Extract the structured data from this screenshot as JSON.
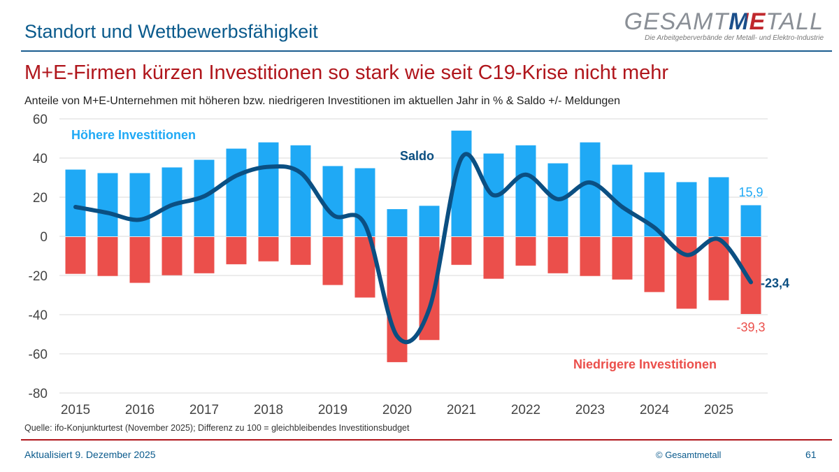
{
  "header": {
    "section_title": "Standort und Wettbewerbsfähigkeit",
    "logo": {
      "text_left": "GESAMT",
      "text_me": "ME",
      "text_right": "TALL",
      "tagline": "Die Arbeitgeberverbände der Metall- und Elektro-Industrie"
    }
  },
  "headline": "M+E-Firmen kürzen Investitionen so stark wie seit C19-Krise nicht mehr",
  "subtitle": "Anteile von M+E-Unternehmen mit höheren bzw. niedrigeren Investitionen im aktuellen Jahr in % & Saldo +/- Meldungen",
  "chart_data": {
    "type": "bar",
    "ylim": [
      -80,
      60
    ],
    "yticks": [
      "60",
      "40",
      "20",
      "0",
      "-20",
      "-40",
      "-60",
      "-80"
    ],
    "ytick_values": [
      60,
      40,
      20,
      0,
      -20,
      -40,
      -60,
      -80
    ],
    "xtick_labels": [
      "2015",
      "2016",
      "2017",
      "2018",
      "2019",
      "2020",
      "2021",
      "2022",
      "2023",
      "2024",
      "2025"
    ],
    "grid": true,
    "series": [
      {
        "name": "Höhere Investitionen",
        "color": "#1fa9f5",
        "type": "bar",
        "values": [
          34.1,
          32.3,
          32.3,
          35.2,
          39.1,
          44.8,
          48.0,
          46.5,
          35.9,
          34.8,
          13.9,
          15.6,
          54.0,
          42.3,
          46.5,
          37.3,
          48.0,
          36.6,
          32.7,
          27.7,
          30.2,
          15.9
        ]
      },
      {
        "name": "Niedrigere Investitionen",
        "color": "#eb4f4b",
        "type": "bar",
        "values": [
          -18.8,
          -19.9,
          -23.4,
          -19.5,
          -18.5,
          -13.9,
          -12.4,
          -14.2,
          -24.5,
          -30.9,
          -63.9,
          -52.6,
          -14.2,
          -21.3,
          -14.6,
          -18.5,
          -19.9,
          -21.7,
          -28.1,
          -36.6,
          -32.3,
          -39.3
        ]
      },
      {
        "name": "Saldo",
        "color": "#0b4f82",
        "type": "line",
        "values": [
          15,
          12,
          8.5,
          16,
          20.5,
          31,
          35.5,
          32.5,
          11,
          6,
          -51,
          -37,
          40,
          21,
          31.5,
          19,
          27.5,
          15,
          4.5,
          -9.5,
          -1.5,
          -23.4
        ]
      }
    ],
    "data_labels": {
      "last_higher": "15,9",
      "last_saldo": "-23,4",
      "last_lower": "-39,3"
    }
  },
  "footer": {
    "source": "Quelle: ifo-Konjunkturtest (November 2025); Differenz zu 100 = gleichbleibendes Investitionsbudget",
    "updated": "Aktualisiert 9. Dezember 2025",
    "copyright": "© Gesamtmetall",
    "page": "61"
  }
}
